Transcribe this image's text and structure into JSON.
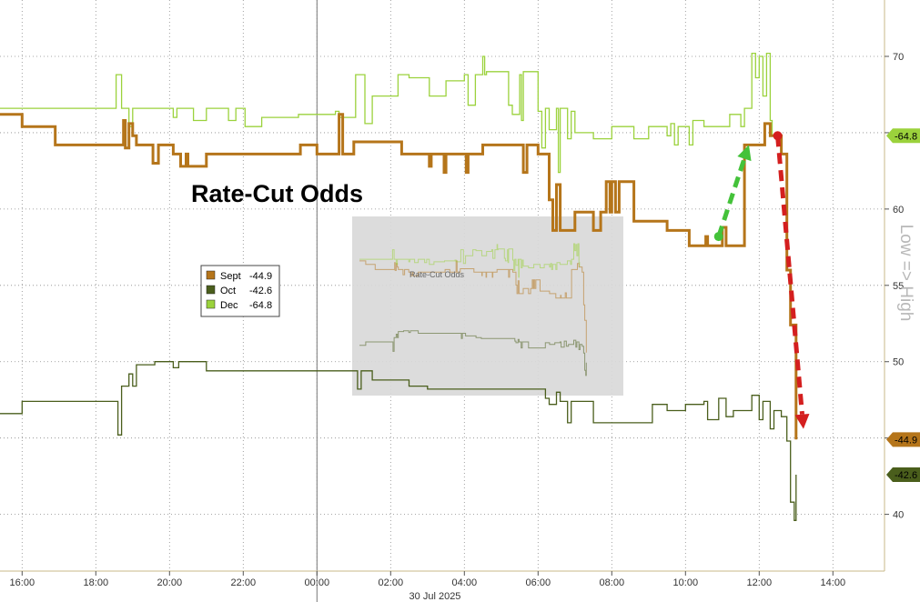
{
  "chart_data": {
    "type": "line",
    "title": "Rate-Cut Odds",
    "side_label": "Low => High",
    "date_label": "30 Jul 2025",
    "x_tick_labels": [
      "16:00",
      "18:00",
      "20:00",
      "22:00",
      "00:00",
      "02:00",
      "04:00",
      "06:00",
      "08:00",
      "10:00",
      "12:00",
      "14:00"
    ],
    "x_tick_hours": [
      16,
      18,
      20,
      22,
      24,
      26,
      28,
      30,
      32,
      34,
      36,
      38
    ],
    "xlim": [
      15.4,
      39.4
    ],
    "divider_hour": 24,
    "ylim": [
      36,
      74
    ],
    "y_axis_inverted": true,
    "y_ticks": [
      70,
      65,
      60,
      55,
      50,
      45,
      40
    ],
    "y_tick_labels": [
      "70",
      "",
      "60",
      "55",
      "50",
      "",
      "40"
    ],
    "grid": true,
    "legend_position": "center-left",
    "colors": {
      "Sept": "#b5751a",
      "Oct": "#4a5e1c",
      "Dec": "#9bd23c",
      "arrow_up": "#44c23a",
      "arrow_down": "#d41f1f",
      "inset_bg": "#d9d9d9"
    },
    "series": [
      {
        "name": "Sept",
        "last_label": "-44.9",
        "last": 44.9,
        "points": [
          [
            15.4,
            66.2
          ],
          [
            15.9,
            66.2
          ],
          [
            16.0,
            65.4
          ],
          [
            16.8,
            65.4
          ],
          [
            16.9,
            64.2
          ],
          [
            18.7,
            64.2
          ],
          [
            18.75,
            65.8
          ],
          [
            18.8,
            64.0
          ],
          [
            18.9,
            65.6
          ],
          [
            19.0,
            64.8
          ],
          [
            19.1,
            64.2
          ],
          [
            19.5,
            64.2
          ],
          [
            19.55,
            63.0
          ],
          [
            19.7,
            64.2
          ],
          [
            20.1,
            63.6
          ],
          [
            20.3,
            62.8
          ],
          [
            20.45,
            63.6
          ],
          [
            20.5,
            62.8
          ],
          [
            21.0,
            63.6
          ],
          [
            21.2,
            63.6
          ],
          [
            21.5,
            63.6
          ],
          [
            22.0,
            63.6
          ],
          [
            22.5,
            63.6
          ],
          [
            23.0,
            63.6
          ],
          [
            23.5,
            63.6
          ],
          [
            23.55,
            64.2
          ],
          [
            23.9,
            64.2
          ],
          [
            24.0,
            63.6
          ],
          [
            24.5,
            63.6
          ],
          [
            24.6,
            66.2
          ],
          [
            24.7,
            63.6
          ],
          [
            25.0,
            64.4
          ],
          [
            25.5,
            64.4
          ],
          [
            26.0,
            64.4
          ],
          [
            26.3,
            63.6
          ],
          [
            27.0,
            63.6
          ],
          [
            27.05,
            62.8
          ],
          [
            27.1,
            63.6
          ],
          [
            27.4,
            63.6
          ],
          [
            27.45,
            62.4
          ],
          [
            27.5,
            63.6
          ],
          [
            28.0,
            63.6
          ],
          [
            28.05,
            62.4
          ],
          [
            28.1,
            63.6
          ],
          [
            28.5,
            64.2
          ],
          [
            29.0,
            64.2
          ],
          [
            29.5,
            64.2
          ],
          [
            29.6,
            62.4
          ],
          [
            29.7,
            64.2
          ],
          [
            30.0,
            63.6
          ],
          [
            30.3,
            60.6
          ],
          [
            30.4,
            58.6
          ],
          [
            30.5,
            61.6
          ],
          [
            30.6,
            58.6
          ],
          [
            30.9,
            58.6
          ],
          [
            31.0,
            59.8
          ],
          [
            31.1,
            59.8
          ],
          [
            31.5,
            58.6
          ],
          [
            31.6,
            58.6
          ],
          [
            31.7,
            59.8
          ],
          [
            31.85,
            61.8
          ],
          [
            31.95,
            59.8
          ],
          [
            32.0,
            61.8
          ],
          [
            32.1,
            59.8
          ],
          [
            32.2,
            61.8
          ],
          [
            32.5,
            61.8
          ],
          [
            32.6,
            59.2
          ],
          [
            33.0,
            59.2
          ],
          [
            33.5,
            58.6
          ],
          [
            34.0,
            58.6
          ],
          [
            34.1,
            57.6
          ],
          [
            34.5,
            57.6
          ],
          [
            34.55,
            58.2
          ],
          [
            34.6,
            57.6
          ],
          [
            34.9,
            57.6
          ],
          [
            35.0,
            58.8
          ],
          [
            35.1,
            57.6
          ],
          [
            35.4,
            57.6
          ],
          [
            35.6,
            64.2
          ],
          [
            36.0,
            64.2
          ],
          [
            36.15,
            65.6
          ],
          [
            36.3,
            64.8
          ],
          [
            36.6,
            63.6
          ],
          [
            36.75,
            56.0
          ],
          [
            36.85,
            52.4
          ],
          [
            37.0,
            44.9
          ]
        ]
      },
      {
        "name": "Oct",
        "last_label": "-42.6",
        "last": 42.6,
        "points": [
          [
            15.4,
            46.6
          ],
          [
            15.9,
            46.6
          ],
          [
            16.0,
            47.4
          ],
          [
            17.5,
            47.4
          ],
          [
            18.0,
            47.4
          ],
          [
            18.55,
            47.4
          ],
          [
            18.6,
            45.2
          ],
          [
            18.7,
            48.4
          ],
          [
            18.85,
            48.4
          ],
          [
            18.9,
            49.2
          ],
          [
            19.0,
            48.4
          ],
          [
            19.1,
            49.8
          ],
          [
            19.5,
            49.8
          ],
          [
            19.6,
            50.0
          ],
          [
            20.0,
            50.0
          ],
          [
            20.1,
            49.6
          ],
          [
            20.2,
            49.6
          ],
          [
            20.25,
            50.0
          ],
          [
            21.0,
            49.4
          ],
          [
            22.0,
            49.4
          ],
          [
            23.0,
            49.4
          ],
          [
            24.0,
            49.4
          ],
          [
            24.5,
            49.4
          ],
          [
            25.0,
            49.4
          ],
          [
            25.1,
            48.2
          ],
          [
            25.2,
            49.4
          ],
          [
            25.5,
            48.8
          ],
          [
            26.5,
            48.4
          ],
          [
            27.0,
            48.2
          ],
          [
            28.0,
            48.2
          ],
          [
            29.0,
            48.2
          ],
          [
            30.0,
            48.2
          ],
          [
            30.2,
            47.6
          ],
          [
            30.3,
            47.2
          ],
          [
            30.5,
            48.0
          ],
          [
            30.6,
            47.4
          ],
          [
            30.8,
            46.0
          ],
          [
            30.9,
            47.4
          ],
          [
            31.1,
            47.4
          ],
          [
            31.5,
            46.0
          ],
          [
            32.0,
            46.0
          ],
          [
            32.5,
            46.0
          ],
          [
            33.0,
            46.0
          ],
          [
            33.1,
            47.2
          ],
          [
            33.5,
            46.8
          ],
          [
            34.0,
            47.2
          ],
          [
            34.5,
            47.4
          ],
          [
            34.6,
            46.2
          ],
          [
            34.9,
            47.6
          ],
          [
            35.1,
            46.4
          ],
          [
            35.3,
            46.8
          ],
          [
            35.6,
            46.8
          ],
          [
            35.8,
            47.8
          ],
          [
            36.0,
            46.2
          ],
          [
            36.1,
            47.4
          ],
          [
            36.3,
            45.6
          ],
          [
            36.4,
            46.8
          ],
          [
            36.6,
            46.4
          ],
          [
            36.75,
            44.8
          ],
          [
            36.85,
            40.8
          ],
          [
            36.95,
            39.6
          ],
          [
            37.0,
            42.6
          ]
        ]
      },
      {
        "name": "Dec",
        "last_label": "-64.8",
        "last": 64.8,
        "points": [
          [
            15.4,
            66.6
          ],
          [
            15.9,
            66.6
          ],
          [
            16.0,
            66.6
          ],
          [
            17.0,
            66.6
          ],
          [
            18.0,
            66.6
          ],
          [
            18.5,
            66.6
          ],
          [
            18.55,
            68.8
          ],
          [
            18.7,
            66.6
          ],
          [
            18.9,
            65.4
          ],
          [
            19.0,
            66.6
          ],
          [
            19.5,
            66.6
          ],
          [
            20.0,
            66.6
          ],
          [
            20.1,
            66.0
          ],
          [
            20.2,
            66.6
          ],
          [
            20.6,
            66.6
          ],
          [
            20.65,
            65.8
          ],
          [
            21.0,
            66.6
          ],
          [
            21.5,
            66.6
          ],
          [
            21.6,
            65.8
          ],
          [
            21.8,
            66.6
          ],
          [
            22.0,
            66.6
          ],
          [
            22.05,
            65.4
          ],
          [
            22.5,
            66.0
          ],
          [
            23.0,
            66.0
          ],
          [
            23.5,
            66.2
          ],
          [
            24.0,
            66.2
          ],
          [
            24.5,
            66.4
          ],
          [
            24.6,
            66.0
          ],
          [
            25.0,
            66.0
          ],
          [
            25.05,
            68.8
          ],
          [
            25.3,
            65.6
          ],
          [
            25.5,
            67.4
          ],
          [
            26.0,
            67.4
          ],
          [
            26.2,
            68.8
          ],
          [
            26.5,
            68.6
          ],
          [
            27.0,
            68.6
          ],
          [
            27.05,
            67.4
          ],
          [
            27.5,
            68.4
          ],
          [
            28.0,
            68.8
          ],
          [
            28.1,
            66.8
          ],
          [
            28.3,
            68.8
          ],
          [
            28.5,
            70.0
          ],
          [
            28.55,
            68.8
          ],
          [
            28.6,
            69.0
          ],
          [
            29.0,
            69.0
          ],
          [
            29.2,
            66.8
          ],
          [
            29.3,
            66.2
          ],
          [
            29.5,
            68.8
          ],
          [
            29.55,
            65.8
          ],
          [
            29.6,
            69.0
          ],
          [
            29.9,
            69.0
          ],
          [
            30.0,
            66.4
          ],
          [
            30.1,
            64.0
          ],
          [
            30.2,
            66.6
          ],
          [
            30.3,
            65.2
          ],
          [
            30.5,
            66.6
          ],
          [
            30.55,
            62.4
          ],
          [
            30.6,
            66.6
          ],
          [
            30.8,
            64.6
          ],
          [
            30.9,
            66.4
          ],
          [
            31.0,
            65.0
          ],
          [
            31.5,
            64.6
          ],
          [
            32.0,
            65.4
          ],
          [
            32.5,
            65.4
          ],
          [
            32.6,
            64.6
          ],
          [
            33.0,
            65.4
          ],
          [
            33.5,
            64.8
          ],
          [
            33.6,
            65.6
          ],
          [
            33.7,
            64.2
          ],
          [
            33.8,
            65.4
          ],
          [
            34.0,
            65.4
          ],
          [
            34.1,
            64.2
          ],
          [
            34.2,
            65.8
          ],
          [
            34.5,
            65.4
          ],
          [
            35.0,
            65.4
          ],
          [
            35.2,
            66.2
          ],
          [
            35.5,
            65.4
          ],
          [
            35.6,
            66.6
          ],
          [
            35.8,
            70.2
          ],
          [
            35.9,
            68.6
          ],
          [
            36.0,
            70.0
          ],
          [
            36.1,
            67.4
          ],
          [
            36.2,
            70.2
          ],
          [
            36.3,
            65.8
          ],
          [
            36.35,
            64.8
          ]
        ]
      }
    ]
  },
  "legend": {
    "items": [
      {
        "name": "Sept",
        "value": "-44.9"
      },
      {
        "name": "Oct",
        "value": "-42.6"
      },
      {
        "name": "Dec",
        "value": "-64.8"
      }
    ]
  },
  "inset": {
    "description": "faded copy of the same chart",
    "title": "Rate-Cut Odds"
  }
}
